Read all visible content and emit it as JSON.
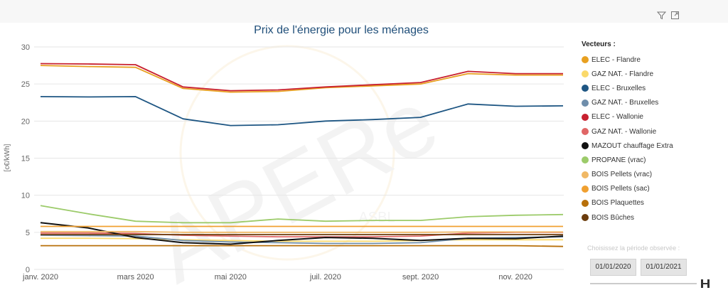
{
  "toolbar": {
    "icons": [
      "filter-icon",
      "expand-icon"
    ]
  },
  "chart_data": {
    "type": "line",
    "title": "Prix de l'énergie pour les ménages",
    "xlabel": "",
    "ylabel": "[c€/kWh]",
    "ylim": [
      0,
      30
    ],
    "yticks": [
      0,
      5,
      10,
      15,
      20,
      25,
      30
    ],
    "x": [
      "2020-01",
      "2020-02",
      "2020-03",
      "2020-04",
      "2020-05",
      "2020-06",
      "2020-07",
      "2020-08",
      "2020-09",
      "2020-10",
      "2020-11",
      "2020-12"
    ],
    "xtick_labels": [
      "janv. 2020",
      "mars 2020",
      "mai 2020",
      "juil. 2020",
      "sept. 2020",
      "nov. 2020"
    ],
    "xtick_indices": [
      0,
      2,
      4,
      6,
      8,
      10
    ],
    "legend_title": "Vecteurs :",
    "legend_position": "right",
    "grid": "horizontal",
    "series": [
      {
        "name": "ELEC - Flandre",
        "color": "#e8a020",
        "values": [
          27.5,
          27.35,
          27.25,
          24.4,
          23.9,
          24.0,
          24.5,
          24.75,
          25.0,
          26.4,
          26.2,
          26.2
        ]
      },
      {
        "name": "GAZ NAT. - Flandre",
        "color": "#fad96b",
        "values": [
          4.2,
          4.2,
          4.15,
          4.0,
          3.9,
          3.8,
          3.8,
          3.8,
          3.9,
          4.0,
          4.0,
          4.0
        ]
      },
      {
        "name": "ELEC - Bruxelles",
        "color": "#1e5683",
        "values": [
          23.3,
          23.25,
          23.3,
          20.3,
          19.4,
          19.5,
          20.0,
          20.2,
          20.5,
          22.3,
          22.0,
          22.05
        ]
      },
      {
        "name": "GAZ NAT. - Bruxelles",
        "color": "#6f8eab",
        "values": [
          4.6,
          4.55,
          4.5,
          3.9,
          3.7,
          3.6,
          3.5,
          3.5,
          3.6,
          4.2,
          4.3,
          4.4
        ]
      },
      {
        "name": "ELEC - Wallonie",
        "color": "#c8202f",
        "values": [
          27.75,
          27.7,
          27.6,
          24.6,
          24.1,
          24.2,
          24.6,
          24.9,
          25.2,
          26.7,
          26.4,
          26.4
        ]
      },
      {
        "name": "GAZ NAT. - Wallonie",
        "color": "#e06666",
        "values": [
          4.9,
          4.9,
          4.85,
          4.6,
          4.5,
          4.4,
          4.4,
          4.4,
          4.5,
          4.9,
          5.0,
          5.0
        ]
      },
      {
        "name": "MAZOUT chauffage Extra",
        "color": "#111111",
        "values": [
          6.3,
          5.6,
          4.3,
          3.6,
          3.4,
          3.9,
          4.3,
          4.2,
          3.9,
          4.2,
          4.15,
          4.5
        ]
      },
      {
        "name": "PROPANE (vrac)",
        "color": "#9ccb6a",
        "values": [
          8.6,
          7.5,
          6.5,
          6.3,
          6.3,
          6.8,
          6.5,
          6.6,
          6.6,
          7.1,
          7.3,
          7.4
        ]
      },
      {
        "name": "BOIS Pellets (vrac)",
        "color": "#f0b865",
        "values": [
          5.1,
          5.1,
          5.1,
          5.0,
          5.0,
          5.0,
          5.0,
          5.0,
          5.0,
          5.05,
          5.05,
          5.05
        ]
      },
      {
        "name": "BOIS Pellets (sac)",
        "color": "#f0a030",
        "values": [
          5.8,
          5.8,
          5.8,
          5.8,
          5.8,
          5.8,
          5.8,
          5.8,
          5.8,
          5.8,
          5.8,
          5.8
        ]
      },
      {
        "name": "BOIS Plaquettes",
        "color": "#b8700a",
        "values": [
          3.2,
          3.2,
          3.2,
          3.2,
          3.2,
          3.2,
          3.2,
          3.2,
          3.2,
          3.2,
          3.2,
          3.1
        ]
      },
      {
        "name": "BOIS Bûches",
        "color": "#6b3c0c",
        "values": [
          4.7,
          4.7,
          4.7,
          4.7,
          4.7,
          4.7,
          4.7,
          4.7,
          4.7,
          4.7,
          4.7,
          4.7
        ]
      }
    ]
  },
  "watermark": {
    "main": "APERe",
    "sub": "ASBL"
  },
  "period": {
    "label": "Choisissez la période observée :",
    "start": "01/01/2020",
    "end": "01/01/2021"
  }
}
